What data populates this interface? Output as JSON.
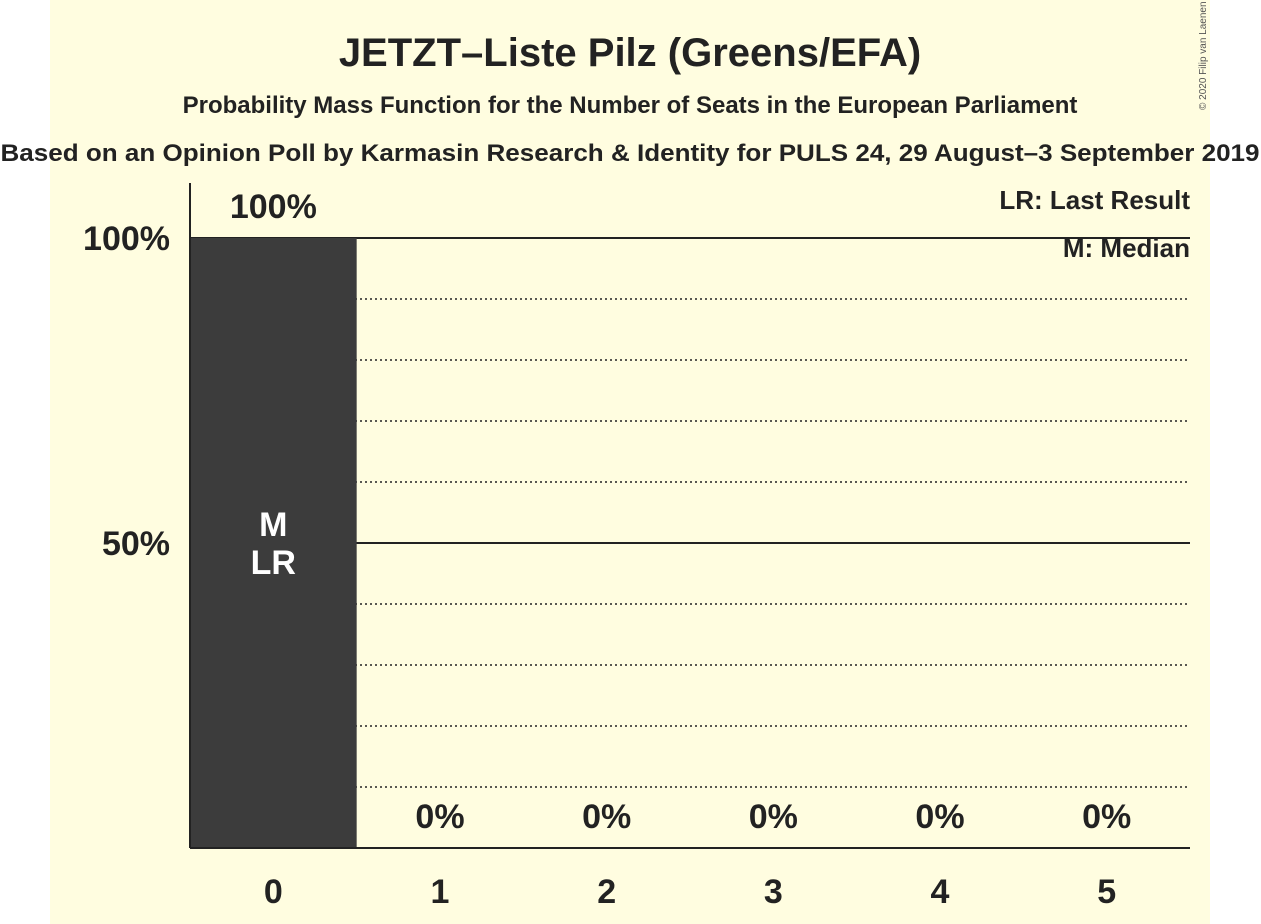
{
  "chart_data": {
    "type": "bar",
    "title": "JETZT–Liste Pilz (Greens/EFA)",
    "subtitle": "Probability Mass Function for the Number of Seats in the European Parliament",
    "subtitle2": "Based on an Opinion Poll by Karmasin Research & Identity for PULS 24, 29 August–3 September 2019",
    "copyright": "© 2020 Filip van Laenen",
    "categories": [
      "0",
      "1",
      "2",
      "3",
      "4",
      "5"
    ],
    "values": [
      100,
      0,
      0,
      0,
      0,
      0
    ],
    "value_labels": [
      "100%",
      "0%",
      "0%",
      "0%",
      "0%",
      "0%"
    ],
    "ylim": [
      0,
      100
    ],
    "yticks": [
      {
        "value": 50,
        "label": "50%"
      },
      {
        "value": 100,
        "label": "100%"
      }
    ],
    "bar_annotations": [
      {
        "category": "0",
        "lines": [
          "M",
          "LR"
        ]
      }
    ],
    "legend": [
      "LR: Last Result",
      "M: Median"
    ],
    "legend_position": "top-right",
    "grid": "dotted every 10%, solid at 50% and 100%",
    "colors": {
      "bar": "#3c3c3c",
      "background": "#fffde0",
      "text": "#222222",
      "annotation": "#ffffff"
    }
  }
}
